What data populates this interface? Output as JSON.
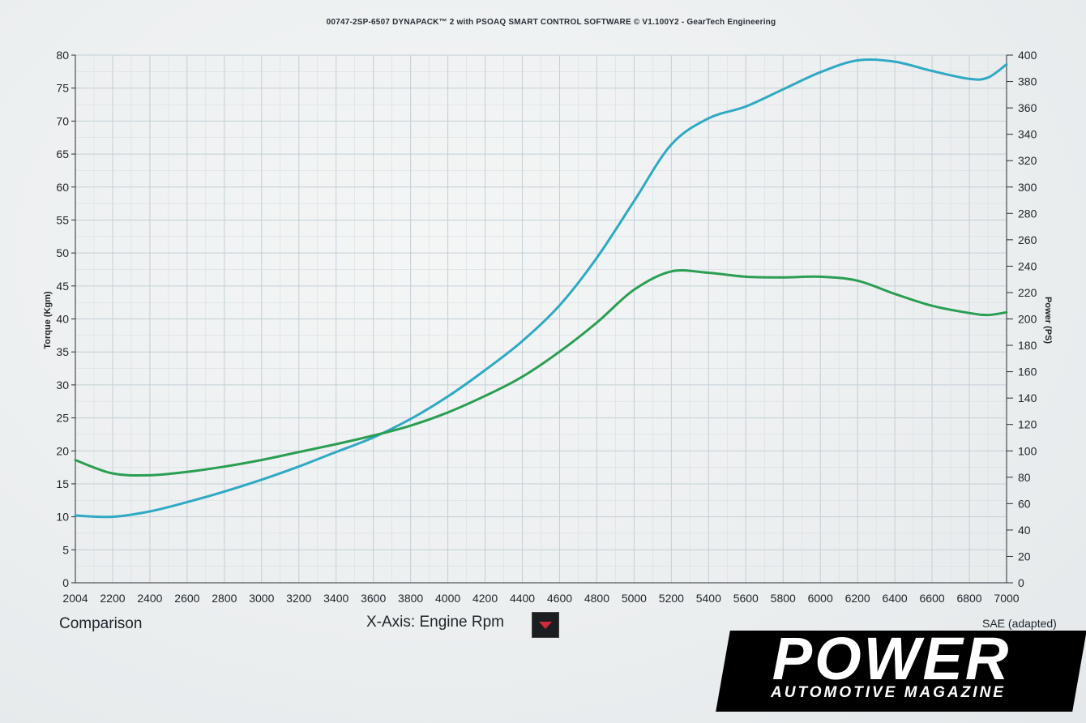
{
  "header": {
    "title": "00747-2SP-6507 DYNAPACK™ 2 with PSOAQ SMART CONTROL SOFTWARE © V1.100Y2 - GearTech Engineering"
  },
  "footer": {
    "comparison": "Comparison",
    "x_axis_label": "X-Axis: Engine Rpm",
    "sae": "SAE (adapted)"
  },
  "logo": {
    "title": "POWER",
    "subtitle": "AUTOMOTIVE MAGAZINE"
  },
  "colors": {
    "power_line": "#2fa9c4",
    "torque_line": "#2a9e52",
    "grid": "#c3cfd6",
    "logo_bg": "#000000"
  },
  "chart_data": {
    "type": "line",
    "xlabel": "",
    "ylabel": "Torque (Kgm)",
    "y2label": "Power (PS)",
    "xlim": [
      2004,
      7000
    ],
    "ylim": [
      0,
      80
    ],
    "y2lim": [
      0,
      400
    ],
    "grid": true,
    "x_ticks": [
      "2004",
      "2200",
      "2400",
      "2600",
      "2800",
      "3000",
      "3200",
      "3400",
      "3600",
      "3800",
      "4000",
      "4200",
      "4400",
      "4600",
      "4800",
      "5000",
      "5200",
      "5400",
      "5600",
      "5800",
      "6000",
      "6200",
      "6400",
      "6600",
      "6800",
      "7000"
    ],
    "y_ticks": [
      "0",
      "5",
      "10",
      "15",
      "20",
      "25",
      "30",
      "35",
      "40",
      "45",
      "50",
      "55",
      "60",
      "65",
      "70",
      "75",
      "80"
    ],
    "y2_ticks": [
      "0",
      "20",
      "40",
      "60",
      "80",
      "100",
      "120",
      "140",
      "160",
      "180",
      "200",
      "220",
      "240",
      "260",
      "280",
      "300",
      "320",
      "340",
      "360",
      "380",
      "400"
    ],
    "series": [
      {
        "name": "",
        "axis": "right",
        "color": "#2fa9c4",
        "x": [
          2004,
          2200,
          2400,
          2600,
          2800,
          3000,
          3200,
          3400,
          3600,
          3800,
          4000,
          4200,
          4400,
          4600,
          4800,
          5000,
          5200,
          5400,
          5600,
          5800,
          6000,
          6200,
          6400,
          6600,
          6800,
          6900,
          7000
        ],
        "y": [
          51,
          50,
          54,
          61,
          69,
          78,
          88,
          99,
          110,
          124,
          141,
          161,
          183,
          210,
          246,
          289,
          332,
          352,
          361,
          374,
          387,
          396,
          395,
          388,
          382,
          383,
          393
        ]
      },
      {
        "name": "",
        "axis": "left",
        "color": "#2a9e52",
        "x": [
          2004,
          2200,
          2400,
          2600,
          2800,
          3000,
          3200,
          3400,
          3600,
          3800,
          4000,
          4200,
          4400,
          4600,
          4800,
          5000,
          5200,
          5400,
          5600,
          5800,
          6000,
          6200,
          6400,
          6600,
          6800,
          6900,
          7000
        ],
        "y": [
          18.6,
          16.6,
          16.3,
          16.8,
          17.6,
          18.6,
          19.8,
          21.0,
          22.3,
          23.8,
          25.8,
          28.3,
          31.2,
          35.0,
          39.4,
          44.4,
          47.2,
          47.0,
          46.4,
          46.3,
          46.4,
          45.8,
          43.8,
          42.0,
          40.9,
          40.6,
          41.0
        ]
      }
    ]
  }
}
